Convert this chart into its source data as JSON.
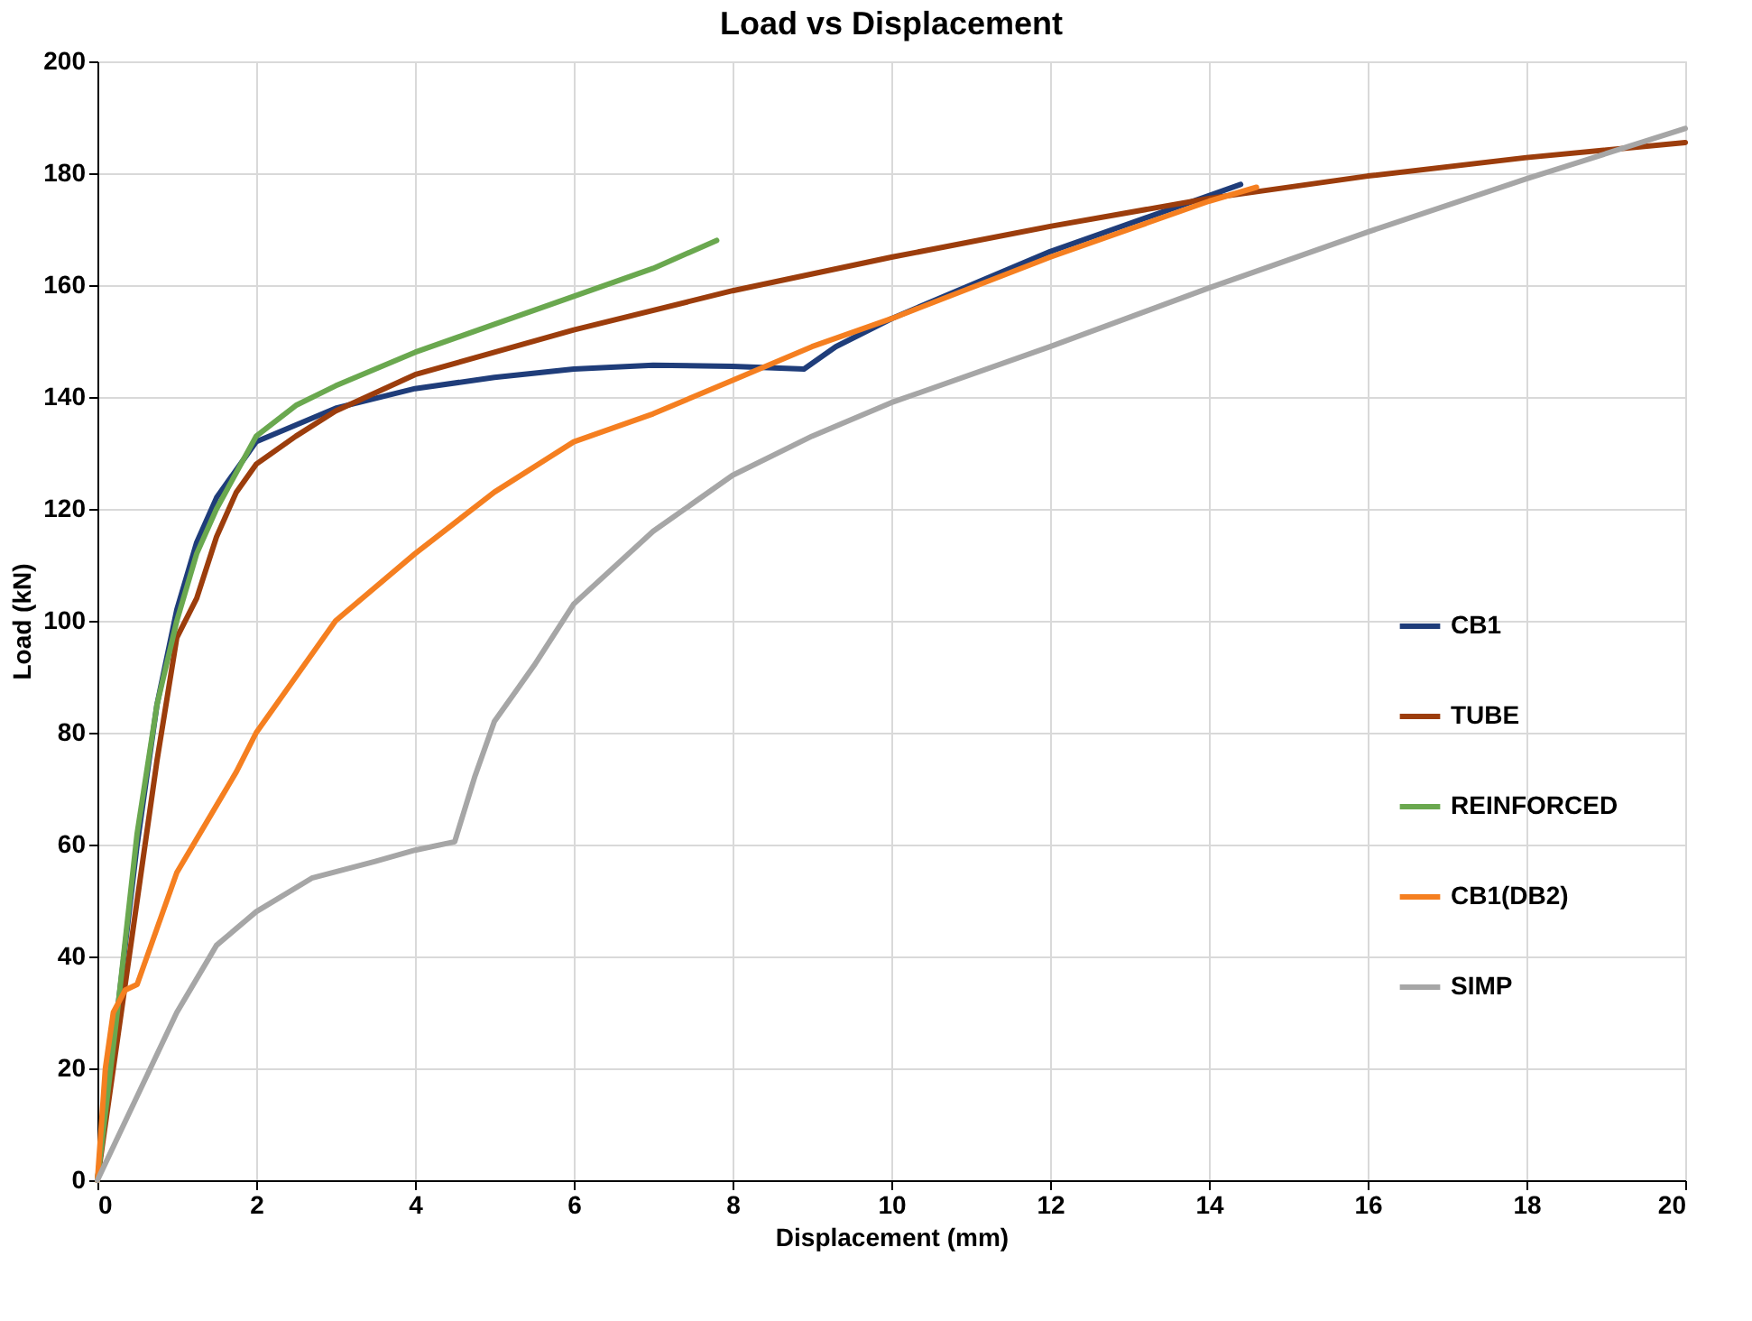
{
  "chart_data": {
    "type": "line",
    "title": "Load vs Displacement",
    "xlabel": "Displacement (mm)",
    "ylabel": "Load (kN)",
    "xlim": [
      0,
      20
    ],
    "xticks": [
      0,
      2,
      4,
      6,
      8,
      10,
      12,
      14,
      16,
      18,
      20
    ],
    "ylim": [
      0,
      200
    ],
    "yticks": [
      0,
      20,
      40,
      60,
      80,
      100,
      120,
      140,
      160,
      180,
      200
    ],
    "grid": true,
    "legend": "right",
    "line_style": "solid",
    "marker": "none",
    "series": [
      {
        "name": "CB1",
        "color": "#1f3d7a",
        "x": [
          0,
          0.25,
          0.5,
          0.75,
          1,
          1.25,
          1.5,
          2,
          3,
          4,
          5,
          6,
          7,
          8,
          8.9,
          9.3,
          10,
          12,
          14,
          14.4
        ],
        "values": [
          0,
          30,
          60,
          85,
          102,
          114,
          122,
          132,
          138,
          141.5,
          143.5,
          145,
          145.7,
          145.5,
          145,
          149,
          154,
          166,
          176,
          178
        ]
      },
      {
        "name": "TUBE",
        "color": "#9c3d0c",
        "x": [
          0,
          0.25,
          0.5,
          0.75,
          1,
          1.25,
          1.5,
          1.75,
          2,
          2.5,
          3,
          4,
          5,
          6,
          8,
          10,
          12,
          14,
          16,
          18,
          20
        ],
        "values": [
          0,
          25,
          50,
          75,
          97,
          104,
          115,
          123,
          128,
          133,
          137.5,
          144,
          148,
          152,
          159,
          165,
          170.5,
          175.5,
          179.5,
          182.8,
          185.5
        ]
      },
      {
        "name": "REINFORCED",
        "color": "#6aa84f",
        "x": [
          0,
          0.25,
          0.5,
          0.75,
          1,
          1.25,
          1.5,
          2,
          2.5,
          3,
          4,
          5,
          6,
          7,
          7.8
        ],
        "values": [
          0,
          30,
          62,
          85,
          100,
          112,
          120,
          133,
          138.5,
          142,
          148,
          153,
          158,
          163,
          168
        ]
      },
      {
        "name": "CB1(DB2)",
        "color": "#f57f20",
        "x": [
          0,
          0.1,
          0.2,
          0.35,
          0.5,
          0.75,
          1,
          1.5,
          1.75,
          2,
          2.5,
          3,
          4,
          5,
          6,
          7,
          8,
          9,
          10,
          12,
          14,
          14.6
        ],
        "values": [
          0,
          20,
          30,
          34,
          35,
          45,
          55,
          67,
          73,
          80,
          90,
          100,
          112,
          123,
          132,
          137,
          143,
          149,
          154,
          165,
          175,
          177.5
        ]
      },
      {
        "name": "SIMP",
        "color": "#a6a6a6",
        "x": [
          0,
          0.5,
          1,
          1.5,
          2,
          2.7,
          3.5,
          4,
          4.5,
          4.75,
          5,
          5.5,
          6,
          7,
          8,
          9,
          10,
          12,
          14,
          16,
          18,
          20
        ],
        "values": [
          0,
          15,
          30,
          42,
          48,
          54,
          57,
          59,
          60.5,
          72,
          82,
          92,
          103,
          116,
          126,
          133,
          139,
          149,
          159.5,
          169.5,
          179,
          188
        ]
      }
    ]
  }
}
